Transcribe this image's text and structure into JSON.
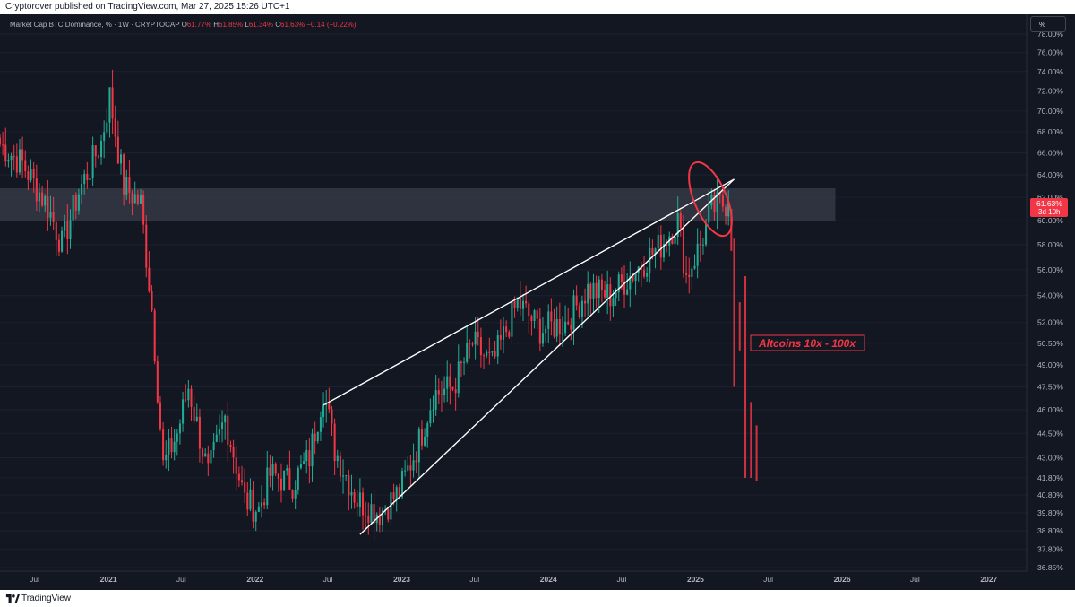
{
  "header": {
    "published": "Cryptorover published on TradingView.com, Mar 27, 2025 15:26 UTC+1"
  },
  "legend": {
    "symbol": "Market Cap BTC Dominance, % · 1W · CRYPTOCAP",
    "o_label": "O",
    "o_value": "61.77%",
    "h_label": "H",
    "h_value": "61.85%",
    "l_label": "L",
    "l_value": "61.34%",
    "c_label": "C",
    "c_value": "61.63%",
    "change": "−0.14 (−0.22%)"
  },
  "scale_button": "%",
  "price_badge": {
    "value": "61.63%",
    "countdown": "3d 10h",
    "color": "#f23645"
  },
  "annotation": {
    "text": "Altcoins 10x - 100x",
    "color": "#f23645"
  },
  "footer": {
    "brand": "TradingView"
  },
  "colors": {
    "background": "#131722",
    "up": "#22ab94",
    "down": "#f23645",
    "zone": "#3a3d4a",
    "wedge": "#ffffff"
  },
  "chart_data": {
    "type": "candlestick",
    "symbol": "Market Cap BTC Dominance, % · 1W · CRYPTOCAP",
    "y_scale": "log",
    "ylim": [
      36.8,
      78.0
    ],
    "y_ticks": [
      "78.00%",
      "76.00%",
      "74.00%",
      "72.00%",
      "70.00%",
      "68.00%",
      "66.00%",
      "64.00%",
      "62.00%",
      "60.00%",
      "58.00%",
      "56.00%",
      "54.00%",
      "52.00%",
      "50.50%",
      "49.00%",
      "47.50%",
      "46.00%",
      "44.50%",
      "43.00%",
      "41.80%",
      "40.80%",
      "39.80%",
      "38.80%",
      "37.80%",
      "36.85%"
    ],
    "x_ticks": [
      {
        "label": "Jul",
        "date": "2020-07-01"
      },
      {
        "label": "2021",
        "date": "2021-01-01"
      },
      {
        "label": "Jul",
        "date": "2021-07-01"
      },
      {
        "label": "2022",
        "date": "2022-01-01"
      },
      {
        "label": "Jul",
        "date": "2022-07-01"
      },
      {
        "label": "2023",
        "date": "2023-01-01"
      },
      {
        "label": "Jul",
        "date": "2023-07-01"
      },
      {
        "label": "2024",
        "date": "2024-01-01"
      },
      {
        "label": "Jul",
        "date": "2024-07-01"
      },
      {
        "label": "2025",
        "date": "2025-01-01"
      },
      {
        "label": "Jul",
        "date": "2025-07-01"
      },
      {
        "label": "2026",
        "date": "2026-01-01"
      },
      {
        "label": "Jul",
        "date": "2026-07-01"
      },
      {
        "label": "2027",
        "date": "2027-01-01"
      }
    ],
    "anchors": [
      {
        "date": "2020-04-06",
        "value": 66.8
      },
      {
        "date": "2020-06-01",
        "value": 65.0
      },
      {
        "date": "2020-08-03",
        "value": 61.2
      },
      {
        "date": "2020-09-07",
        "value": 58.0
      },
      {
        "date": "2020-10-19",
        "value": 62.5
      },
      {
        "date": "2020-12-14",
        "value": 67.0
      },
      {
        "date": "2021-01-04",
        "value": 71.5
      },
      {
        "date": "2021-02-08",
        "value": 63.0
      },
      {
        "date": "2021-03-22",
        "value": 61.5
      },
      {
        "date": "2021-04-19",
        "value": 53.0
      },
      {
        "date": "2021-05-17",
        "value": 42.5
      },
      {
        "date": "2021-06-21",
        "value": 44.5
      },
      {
        "date": "2021-07-19",
        "value": 47.5
      },
      {
        "date": "2021-09-06",
        "value": 42.0
      },
      {
        "date": "2021-10-18",
        "value": 45.5
      },
      {
        "date": "2021-12-06",
        "value": 40.5
      },
      {
        "date": "2022-01-10",
        "value": 40.0
      },
      {
        "date": "2022-02-07",
        "value": 42.0
      },
      {
        "date": "2022-04-04",
        "value": 41.5
      },
      {
        "date": "2022-05-16",
        "value": 43.0
      },
      {
        "date": "2022-06-20",
        "value": 47.3
      },
      {
        "date": "2022-07-18",
        "value": 43.5
      },
      {
        "date": "2022-09-12",
        "value": 40.5
      },
      {
        "date": "2022-11-07",
        "value": 39.8
      },
      {
        "date": "2022-12-26",
        "value": 41.0
      },
      {
        "date": "2023-02-13",
        "value": 44.0
      },
      {
        "date": "2023-03-20",
        "value": 47.0
      },
      {
        "date": "2023-05-08",
        "value": 47.5
      },
      {
        "date": "2023-06-26",
        "value": 50.5
      },
      {
        "date": "2023-08-14",
        "value": 49.0
      },
      {
        "date": "2023-10-16",
        "value": 53.5
      },
      {
        "date": "2023-12-11",
        "value": 51.5
      },
      {
        "date": "2024-02-12",
        "value": 52.0
      },
      {
        "date": "2024-04-08",
        "value": 54.5
      },
      {
        "date": "2024-06-03",
        "value": 54.0
      },
      {
        "date": "2024-08-05",
        "value": 56.0
      },
      {
        "date": "2024-10-07",
        "value": 58.0
      },
      {
        "date": "2024-11-18",
        "value": 60.0
      },
      {
        "date": "2024-12-09",
        "value": 55.5
      },
      {
        "date": "2025-01-13",
        "value": 58.0
      },
      {
        "date": "2025-02-10",
        "value": 61.0
      },
      {
        "date": "2025-03-24",
        "value": 61.63
      }
    ],
    "zone": {
      "from_date": "2020-04-06",
      "to_date": "2025-12-15",
      "low": 60.0,
      "high": 62.8
    },
    "wedge_lines": [
      {
        "from": {
          "date": "2022-06-20",
          "value": 46.3
        },
        "to": {
          "date": "2025-04-07",
          "value": 63.6
        }
      },
      {
        "from": {
          "date": "2022-09-19",
          "value": 38.6
        },
        "to": {
          "date": "2025-04-07",
          "value": 63.6
        }
      }
    ],
    "projection_bars": [
      {
        "date": "2025-03-31",
        "high": 61.0,
        "low": 57.5
      },
      {
        "date": "2025-04-07",
        "high": 58.5,
        "low": 47.5
      },
      {
        "date": "2025-04-21",
        "high": 53.5,
        "low": 50.0
      },
      {
        "date": "2025-05-05",
        "high": 55.5,
        "low": 41.8
      },
      {
        "date": "2025-05-19",
        "high": 46.5,
        "low": 41.8
      },
      {
        "date": "2025-06-02",
        "high": 45.0,
        "low": 41.6
      }
    ],
    "last_close": 61.63
  }
}
